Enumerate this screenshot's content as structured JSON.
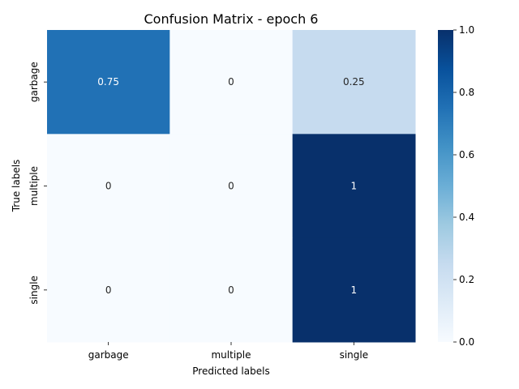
{
  "chart_data": {
    "type": "heatmap",
    "title": "Confusion Matrix - epoch 6",
    "xlabel": "Predicted labels",
    "ylabel": "True labels",
    "x_categories": [
      "garbage",
      "multiple",
      "single"
    ],
    "y_categories": [
      "garbage",
      "multiple",
      "single"
    ],
    "values": [
      [
        0.75,
        0,
        0.25
      ],
      [
        0,
        0,
        1
      ],
      [
        0,
        0,
        1
      ]
    ],
    "cell_labels": [
      [
        "0.75",
        "0",
        "0.25"
      ],
      [
        "0",
        "0",
        "1"
      ],
      [
        "0",
        "0",
        "1"
      ]
    ],
    "colormap": "Blues",
    "vmin": 0,
    "vmax": 1,
    "colorbar_ticks": [
      "0.0",
      "0.2",
      "0.4",
      "0.6",
      "0.8",
      "1.0"
    ],
    "colorbar_tick_values": [
      0,
      0.2,
      0.4,
      0.6,
      0.8,
      1.0
    ],
    "colors": {
      "scale": [
        "#f7fbff",
        "#deebf7",
        "#c6dbef",
        "#9ecae1",
        "#6baed6",
        "#4292c6",
        "#2171b5",
        "#08519c",
        "#08306b"
      ],
      "text_dark": "#262626",
      "text_light": "#ffffff"
    }
  }
}
